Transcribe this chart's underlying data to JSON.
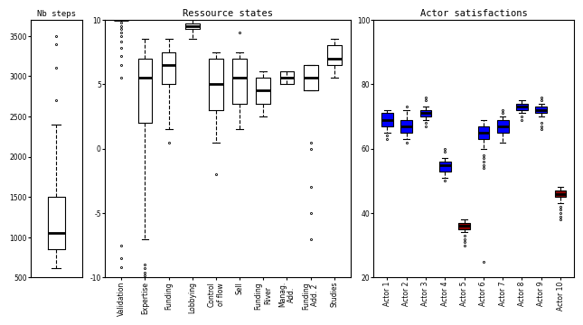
{
  "title_left": "Nb steps",
  "title_mid": "Ressource states",
  "title_right": "Actor satisfactions",
  "nb_steps": {
    "med": 1050,
    "q1": 850,
    "q3": 1500,
    "whislo": 620,
    "whishi": 2400,
    "fliers": [
      3500,
      3400,
      3100,
      2700
    ]
  },
  "resource_labels": [
    "Validation",
    "Expertise",
    "Funding",
    "Lobbying",
    "Control\nof flow",
    "Sell",
    "Funding\nRiver",
    "Manag.\nAdd.",
    "Funding\nAdd. 2",
    "Studies"
  ],
  "resource_boxes": [
    {
      "med": 10,
      "q1": 10,
      "q3": 10,
      "whislo": 10,
      "whishi": 10,
      "fliers": [
        9.8,
        9.5,
        9.3,
        9.0,
        8.7,
        8.3,
        7.8,
        7.2,
        6.5,
        5.5,
        -7.5,
        -8.5,
        -9.2
      ]
    },
    {
      "med": 5.5,
      "q1": 2.0,
      "q3": 7.0,
      "whislo": -7.0,
      "whishi": 8.5,
      "fliers": [
        -9.0,
        -9.3,
        -9.6,
        -9.8
      ]
    },
    {
      "med": 6.5,
      "q1": 5.0,
      "q3": 7.5,
      "whislo": 1.5,
      "whishi": 8.5,
      "fliers": [
        0.5
      ]
    },
    {
      "med": 9.5,
      "q1": 9.3,
      "q3": 9.7,
      "whislo": 8.5,
      "whishi": 10.0,
      "fliers": []
    },
    {
      "med": 5.0,
      "q1": 3.0,
      "q3": 7.0,
      "whislo": 0.5,
      "whishi": 7.5,
      "fliers": [
        -2.0
      ]
    },
    {
      "med": 5.5,
      "q1": 3.5,
      "q3": 7.0,
      "whislo": 1.5,
      "whishi": 7.5,
      "fliers": [
        9.0
      ]
    },
    {
      "med": 4.5,
      "q1": 3.5,
      "q3": 5.5,
      "whislo": 2.5,
      "whishi": 6.0,
      "fliers": []
    },
    {
      "med": 5.5,
      "q1": 5.0,
      "q3": 6.0,
      "whislo": 5.5,
      "whishi": 5.5,
      "fliers": []
    },
    {
      "med": 5.5,
      "q1": 4.5,
      "q3": 6.5,
      "whislo": 4.5,
      "whishi": 6.5,
      "fliers": [
        0.5,
        0.0,
        -3.0,
        -5.0,
        -7.0
      ]
    },
    {
      "med": 7.0,
      "q1": 6.5,
      "q3": 8.0,
      "whislo": 5.5,
      "whishi": 8.5,
      "fliers": []
    }
  ],
  "actor_labels": [
    "Actor 1",
    "Actor 2",
    "Actor 3",
    "Actor 4",
    "Actor 5",
    "Actor 6",
    "Actor 7",
    "Actor 8",
    "Actor 9",
    "Actor 10"
  ],
  "actor_boxes": [
    {
      "med": 69,
      "q1": 67,
      "q3": 71,
      "whislo": 65,
      "whishi": 72,
      "fliers": [
        63,
        64
      ],
      "color": "blue"
    },
    {
      "med": 67,
      "q1": 65,
      "q3": 69,
      "whislo": 63,
      "whishi": 72,
      "fliers": [
        62,
        73
      ],
      "color": "blue"
    },
    {
      "med": 71,
      "q1": 70,
      "q3": 72,
      "whislo": 69,
      "whishi": 73,
      "fliers": [
        68,
        67,
        75,
        76
      ],
      "color": "blue"
    },
    {
      "med": 55,
      "q1": 53,
      "q3": 56,
      "whislo": 51,
      "whishi": 57,
      "fliers": [
        50,
        59,
        60
      ],
      "color": "blue"
    },
    {
      "med": 36,
      "q1": 35,
      "q3": 37,
      "whislo": 34,
      "whishi": 38,
      "fliers": [
        33,
        32,
        31,
        30
      ],
      "color": "darkred"
    },
    {
      "med": 65,
      "q1": 63,
      "q3": 67,
      "whislo": 60,
      "whishi": 69,
      "fliers": [
        58,
        57,
        56,
        55,
        54,
        25
      ],
      "color": "blue"
    },
    {
      "med": 67,
      "q1": 65,
      "q3": 69,
      "whislo": 62,
      "whishi": 70,
      "fliers": [
        71,
        72
      ],
      "color": "blue"
    },
    {
      "med": 73,
      "q1": 72,
      "q3": 74,
      "whislo": 71,
      "whishi": 75,
      "fliers": [
        70,
        69
      ],
      "color": "blue"
    },
    {
      "med": 72,
      "q1": 71,
      "q3": 73,
      "whislo": 70,
      "whishi": 74,
      "fliers": [
        68,
        67,
        66,
        75,
        76
      ],
      "color": "blue"
    },
    {
      "med": 46,
      "q1": 45,
      "q3": 47,
      "whislo": 43,
      "whishi": 48,
      "fliers": [
        42,
        41,
        40,
        39,
        38
      ],
      "color": "darkred"
    }
  ],
  "nb_yticks": [
    500,
    1000,
    1500,
    2000,
    2500,
    3000,
    3500
  ],
  "nb_ylim": [
    500,
    3700
  ],
  "res_yticks": [
    -10,
    -5,
    0,
    5,
    10
  ],
  "res_ylim": [
    -10,
    10
  ],
  "act_yticks": [
    20,
    40,
    60,
    80,
    100
  ],
  "act_ylim": [
    20,
    100
  ]
}
